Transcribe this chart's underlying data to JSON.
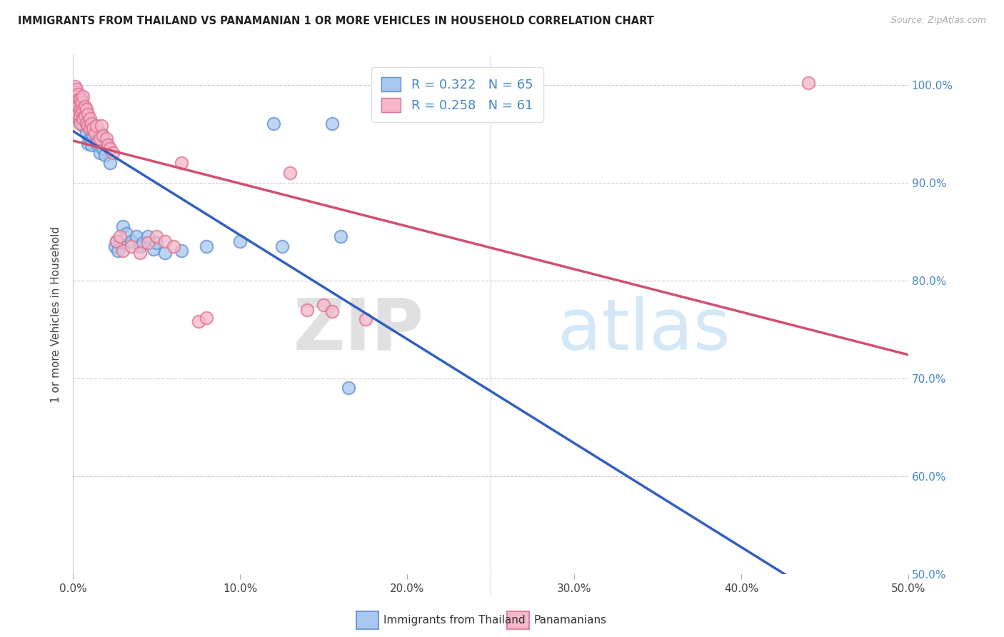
{
  "title": "IMMIGRANTS FROM THAILAND VS PANAMANIAN 1 OR MORE VEHICLES IN HOUSEHOLD CORRELATION CHART",
  "source": "Source: ZipAtlas.com",
  "ylabel": "1 or more Vehicles in Household",
  "legend_blue_label": "Immigrants from Thailand",
  "legend_pink_label": "Panamanians",
  "R_blue": 0.322,
  "N_blue": 65,
  "R_pink": 0.258,
  "N_pink": 61,
  "blue_color": "#A8C8F0",
  "pink_color": "#F5B8C8",
  "blue_edge_color": "#6090D0",
  "pink_edge_color": "#E07090",
  "blue_line_color": "#3060C0",
  "pink_line_color": "#D05070",
  "watermark_zip": "ZIP",
  "watermark_atlas": "atlas",
  "xlim": [
    0.0,
    0.5
  ],
  "ylim": [
    0.5,
    1.03
  ],
  "x_ticks": [
    0.0,
    0.1,
    0.2,
    0.3,
    0.4,
    0.5
  ],
  "y_ticks": [
    0.5,
    0.6,
    0.7,
    0.8,
    0.9,
    1.0
  ],
  "blue_dots": [
    [
      0.001,
      0.99
    ],
    [
      0.001,
      0.985
    ],
    [
      0.001,
      0.975
    ],
    [
      0.002,
      0.992
    ],
    [
      0.002,
      0.988
    ],
    [
      0.002,
      0.982
    ],
    [
      0.002,
      0.975
    ],
    [
      0.002,
      0.97
    ],
    [
      0.003,
      0.99
    ],
    [
      0.003,
      0.985
    ],
    [
      0.003,
      0.98
    ],
    [
      0.003,
      0.972
    ],
    [
      0.003,
      0.965
    ],
    [
      0.004,
      0.988
    ],
    [
      0.004,
      0.982
    ],
    [
      0.004,
      0.975
    ],
    [
      0.004,
      0.968
    ],
    [
      0.005,
      0.985
    ],
    [
      0.005,
      0.978
    ],
    [
      0.005,
      0.96
    ],
    [
      0.006,
      0.98
    ],
    [
      0.006,
      0.97
    ],
    [
      0.006,
      0.958
    ],
    [
      0.007,
      0.975
    ],
    [
      0.007,
      0.965
    ],
    [
      0.008,
      0.96
    ],
    [
      0.008,
      0.95
    ],
    [
      0.009,
      0.968
    ],
    [
      0.009,
      0.94
    ],
    [
      0.01,
      0.955
    ],
    [
      0.01,
      0.945
    ],
    [
      0.011,
      0.96
    ],
    [
      0.011,
      0.938
    ],
    [
      0.012,
      0.948
    ],
    [
      0.013,
      0.952
    ],
    [
      0.014,
      0.942
    ],
    [
      0.015,
      0.938
    ],
    [
      0.016,
      0.93
    ],
    [
      0.017,
      0.95
    ],
    [
      0.018,
      0.935
    ],
    [
      0.019,
      0.928
    ],
    [
      0.02,
      0.94
    ],
    [
      0.022,
      0.92
    ],
    [
      0.025,
      0.835
    ],
    [
      0.026,
      0.84
    ],
    [
      0.027,
      0.83
    ],
    [
      0.028,
      0.84
    ],
    [
      0.03,
      0.855
    ],
    [
      0.032,
      0.848
    ],
    [
      0.035,
      0.84
    ],
    [
      0.038,
      0.845
    ],
    [
      0.04,
      0.835
    ],
    [
      0.042,
      0.838
    ],
    [
      0.045,
      0.845
    ],
    [
      0.048,
      0.832
    ],
    [
      0.05,
      0.838
    ],
    [
      0.055,
      0.828
    ],
    [
      0.065,
      0.83
    ],
    [
      0.08,
      0.835
    ],
    [
      0.1,
      0.84
    ],
    [
      0.12,
      0.96
    ],
    [
      0.125,
      0.835
    ],
    [
      0.155,
      0.96
    ],
    [
      0.16,
      0.845
    ],
    [
      0.165,
      0.69
    ]
  ],
  "pink_dots": [
    [
      0.001,
      0.998
    ],
    [
      0.001,
      0.992
    ],
    [
      0.001,
      0.985
    ],
    [
      0.001,
      0.978
    ],
    [
      0.001,
      0.97
    ],
    [
      0.002,
      0.995
    ],
    [
      0.002,
      0.988
    ],
    [
      0.002,
      0.982
    ],
    [
      0.002,
      0.975
    ],
    [
      0.002,
      0.968
    ],
    [
      0.003,
      0.99
    ],
    [
      0.003,
      0.984
    ],
    [
      0.003,
      0.978
    ],
    [
      0.003,
      0.97
    ],
    [
      0.004,
      0.985
    ],
    [
      0.004,
      0.975
    ],
    [
      0.004,
      0.968
    ],
    [
      0.004,
      0.96
    ],
    [
      0.005,
      0.982
    ],
    [
      0.005,
      0.972
    ],
    [
      0.006,
      0.988
    ],
    [
      0.006,
      0.975
    ],
    [
      0.006,
      0.965
    ],
    [
      0.007,
      0.978
    ],
    [
      0.007,
      0.968
    ],
    [
      0.008,
      0.975
    ],
    [
      0.008,
      0.96
    ],
    [
      0.009,
      0.97
    ],
    [
      0.009,
      0.958
    ],
    [
      0.01,
      0.965
    ],
    [
      0.01,
      0.955
    ],
    [
      0.011,
      0.96
    ],
    [
      0.012,
      0.955
    ],
    [
      0.013,
      0.95
    ],
    [
      0.014,
      0.958
    ],
    [
      0.015,
      0.942
    ],
    [
      0.016,
      0.945
    ],
    [
      0.017,
      0.958
    ],
    [
      0.018,
      0.948
    ],
    [
      0.02,
      0.945
    ],
    [
      0.021,
      0.938
    ],
    [
      0.022,
      0.935
    ],
    [
      0.024,
      0.93
    ],
    [
      0.026,
      0.84
    ],
    [
      0.028,
      0.845
    ],
    [
      0.03,
      0.83
    ],
    [
      0.035,
      0.835
    ],
    [
      0.04,
      0.828
    ],
    [
      0.045,
      0.838
    ],
    [
      0.05,
      0.845
    ],
    [
      0.055,
      0.84
    ],
    [
      0.06,
      0.835
    ],
    [
      0.065,
      0.92
    ],
    [
      0.075,
      0.758
    ],
    [
      0.08,
      0.762
    ],
    [
      0.13,
      0.91
    ],
    [
      0.14,
      0.77
    ],
    [
      0.15,
      0.775
    ],
    [
      0.155,
      0.768
    ],
    [
      0.175,
      0.76
    ],
    [
      0.44,
      1.002
    ]
  ]
}
